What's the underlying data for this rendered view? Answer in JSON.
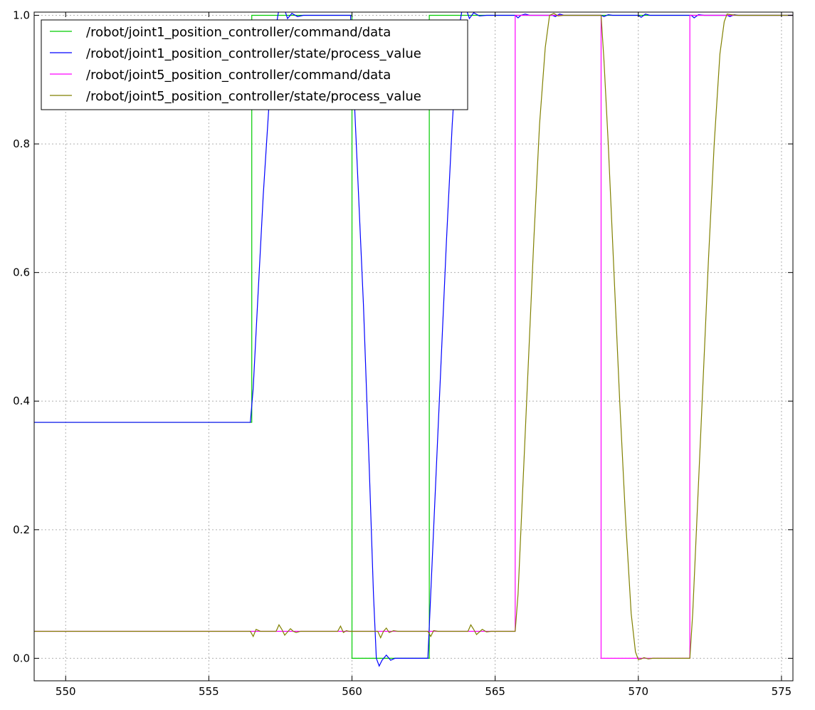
{
  "chart_data": {
    "type": "line",
    "title": "",
    "xlabel": "",
    "ylabel": "",
    "xlim": [
      548.9,
      575.4
    ],
    "ylim": [
      -0.035,
      1.005
    ],
    "x_ticks": [
      550,
      555,
      560,
      565,
      570,
      575
    ],
    "y_ticks": [
      0.0,
      0.2,
      0.4,
      0.6,
      0.8,
      1.0
    ],
    "x_tick_labels": [
      "550",
      "555",
      "560",
      "565",
      "570",
      "575"
    ],
    "y_tick_labels": [
      "0.0",
      "0.2",
      "0.4",
      "0.6",
      "0.8",
      "1.0"
    ],
    "grid": true,
    "legend_position": "upper left",
    "series": [
      {
        "name": "/robot/joint1_position_controller/command/data",
        "color": "#00cc00",
        "points": [
          [
            548.9,
            0.367
          ],
          [
            556.5,
            0.367
          ],
          [
            556.5,
            1.0
          ],
          [
            560.0,
            1.0
          ],
          [
            560.0,
            0.0
          ],
          [
            562.7,
            0.0
          ],
          [
            562.7,
            1.0
          ],
          [
            575.4,
            1.0
          ]
        ]
      },
      {
        "name": "/robot/joint1_position_controller/state/process_value",
        "color": "#0000ff",
        "points": [
          [
            548.9,
            0.367
          ],
          [
            556.45,
            0.367
          ],
          [
            556.55,
            0.42
          ],
          [
            556.7,
            0.55
          ],
          [
            556.9,
            0.72
          ],
          [
            557.1,
            0.86
          ],
          [
            557.3,
            0.97
          ],
          [
            557.45,
            1.01
          ],
          [
            557.6,
            1.015
          ],
          [
            557.75,
            0.995
          ],
          [
            557.9,
            1.003
          ],
          [
            558.1,
            0.998
          ],
          [
            558.3,
            1.0
          ],
          [
            559.95,
            1.0
          ],
          [
            560.05,
            0.9
          ],
          [
            560.2,
            0.75
          ],
          [
            560.4,
            0.55
          ],
          [
            560.6,
            0.3
          ],
          [
            560.75,
            0.1
          ],
          [
            560.85,
            0.0
          ],
          [
            560.95,
            -0.012
          ],
          [
            561.05,
            -0.003
          ],
          [
            561.2,
            0.005
          ],
          [
            561.35,
            -0.003
          ],
          [
            561.5,
            0.0
          ],
          [
            562.65,
            0.0
          ],
          [
            562.75,
            0.1
          ],
          [
            562.9,
            0.25
          ],
          [
            563.1,
            0.45
          ],
          [
            563.3,
            0.65
          ],
          [
            563.5,
            0.83
          ],
          [
            563.7,
            0.97
          ],
          [
            563.85,
            1.01
          ],
          [
            563.95,
            1.015
          ],
          [
            564.1,
            0.995
          ],
          [
            564.25,
            1.004
          ],
          [
            564.45,
            0.999
          ],
          [
            564.7,
            1.0
          ],
          [
            565.7,
            1.0
          ],
          [
            565.8,
            0.996
          ],
          [
            565.9,
            1.0
          ],
          [
            566.05,
            1.002
          ],
          [
            566.2,
            1.0
          ],
          [
            567.0,
            1.0
          ],
          [
            567.1,
            0.998
          ],
          [
            567.25,
            1.002
          ],
          [
            567.4,
            1.0
          ],
          [
            568.7,
            1.0
          ],
          [
            568.8,
            0.998
          ],
          [
            568.95,
            1.001
          ],
          [
            569.1,
            1.0
          ],
          [
            570.0,
            1.0
          ],
          [
            570.1,
            0.997
          ],
          [
            570.25,
            1.002
          ],
          [
            570.4,
            1.0
          ],
          [
            571.85,
            1.0
          ],
          [
            571.95,
            0.996
          ],
          [
            572.1,
            1.001
          ],
          [
            572.3,
            1.0
          ],
          [
            573.1,
            1.0
          ],
          [
            573.2,
            0.998
          ],
          [
            573.35,
            1.001
          ],
          [
            573.5,
            1.0
          ],
          [
            575.4,
            1.0
          ]
        ]
      },
      {
        "name": "/robot/joint5_position_controller/command/data",
        "color": "#ff00ff",
        "points": [
          [
            548.9,
            0.042
          ],
          [
            565.7,
            0.042
          ],
          [
            565.7,
            1.0
          ],
          [
            568.7,
            1.0
          ],
          [
            568.7,
            0.0
          ],
          [
            571.8,
            0.0
          ],
          [
            571.8,
            1.0
          ],
          [
            575.4,
            1.0
          ]
        ]
      },
      {
        "name": "/robot/joint5_position_controller/state/process_value",
        "color": "#808000",
        "points": [
          [
            548.9,
            0.042
          ],
          [
            556.45,
            0.042
          ],
          [
            556.55,
            0.034
          ],
          [
            556.65,
            0.045
          ],
          [
            556.8,
            0.042
          ],
          [
            557.35,
            0.042
          ],
          [
            557.45,
            0.052
          ],
          [
            557.55,
            0.045
          ],
          [
            557.65,
            0.036
          ],
          [
            557.75,
            0.041
          ],
          [
            557.85,
            0.046
          ],
          [
            557.95,
            0.042
          ],
          [
            558.05,
            0.04
          ],
          [
            558.2,
            0.042
          ],
          [
            559.5,
            0.042
          ],
          [
            559.6,
            0.05
          ],
          [
            559.7,
            0.04
          ],
          [
            559.8,
            0.043
          ],
          [
            559.9,
            0.042
          ],
          [
            560.9,
            0.042
          ],
          [
            561.0,
            0.032
          ],
          [
            561.1,
            0.042
          ],
          [
            561.2,
            0.047
          ],
          [
            561.3,
            0.04
          ],
          [
            561.45,
            0.043
          ],
          [
            561.6,
            0.042
          ],
          [
            562.65,
            0.042
          ],
          [
            562.75,
            0.034
          ],
          [
            562.85,
            0.043
          ],
          [
            563.0,
            0.042
          ],
          [
            564.05,
            0.042
          ],
          [
            564.15,
            0.052
          ],
          [
            564.25,
            0.045
          ],
          [
            564.35,
            0.037
          ],
          [
            564.45,
            0.041
          ],
          [
            564.55,
            0.045
          ],
          [
            564.7,
            0.041
          ],
          [
            564.85,
            0.042
          ],
          [
            565.7,
            0.042
          ],
          [
            565.8,
            0.1
          ],
          [
            565.95,
            0.25
          ],
          [
            566.15,
            0.45
          ],
          [
            566.35,
            0.65
          ],
          [
            566.55,
            0.83
          ],
          [
            566.75,
            0.95
          ],
          [
            566.9,
            1.0
          ],
          [
            567.05,
            1.003
          ],
          [
            567.2,
            0.999
          ],
          [
            567.4,
            1.0
          ],
          [
            568.7,
            1.0
          ],
          [
            568.8,
            0.93
          ],
          [
            568.95,
            0.8
          ],
          [
            569.15,
            0.6
          ],
          [
            569.35,
            0.4
          ],
          [
            569.55,
            0.22
          ],
          [
            569.75,
            0.07
          ],
          [
            569.9,
            0.01
          ],
          [
            570.0,
            -0.002
          ],
          [
            570.1,
            -0.001
          ],
          [
            570.2,
            0.001
          ],
          [
            570.35,
            -0.001
          ],
          [
            570.5,
            0.0
          ],
          [
            571.8,
            0.0
          ],
          [
            571.9,
            0.07
          ],
          [
            572.05,
            0.22
          ],
          [
            572.25,
            0.42
          ],
          [
            572.45,
            0.62
          ],
          [
            572.65,
            0.8
          ],
          [
            572.85,
            0.94
          ],
          [
            573.0,
            0.99
          ],
          [
            573.1,
            1.002
          ],
          [
            573.25,
            1.001
          ],
          [
            573.45,
            1.0
          ],
          [
            575.4,
            1.0
          ]
        ]
      }
    ]
  }
}
